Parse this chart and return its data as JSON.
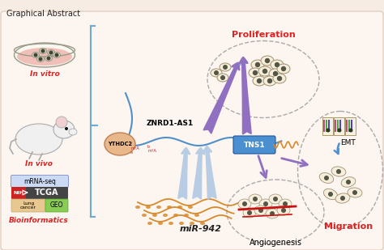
{
  "title": "Graphical Abstract",
  "bg_color": "#f7ece4",
  "panel_bg": "#fdf5f0",
  "title_color": "#222222",
  "title_fontsize": 7,
  "labels": {
    "in_vitro": "In vitro",
    "in_vivo": "In vivo",
    "bioinformatics": "Bioinformatics",
    "mrna_seq": "mRNA-seq",
    "tcga": "TCGA",
    "lung_cancer": "Lung\ncancer",
    "geo": "GEO",
    "znrd1": "ZNRD1-AS1",
    "ythdc2": "YTHDC2",
    "tns1": "TNS1",
    "mir942": "miR-942",
    "proliferation": "Proliferation",
    "migration": "Migration",
    "angiogenesis": "Angiogenesis",
    "emt": "EMT"
  },
  "colors": {
    "bracket_color": "#6aaad5",
    "znrd1_line": "#5090c8",
    "tns1_box": "#4a90d0",
    "mir942_color": "#d8892a",
    "proliferation_text": "#dd2222",
    "migration_text": "#dd2222",
    "angiogenesis_text": "#333333",
    "arrow_purple": "#9070c0",
    "arrow_blue_light": "#b8cce4",
    "ythdc2_fill": "#e8b88a",
    "in_vitro_text": "#dd2222",
    "in_vivo_text": "#dd2222",
    "bioinformatics_text": "#dd2222",
    "mrna_seq_bg": "#ccdaf5",
    "tcga_bg": "#444444",
    "nih_bg": "#cc2222",
    "geo_bg": "#88cc55",
    "lung_bg": "#e8c890",
    "cell_fill": "#f5eedd",
    "cell_edge": "#a09070",
    "cell_nucleus": "#555544",
    "blood_red": "#cc1111"
  }
}
